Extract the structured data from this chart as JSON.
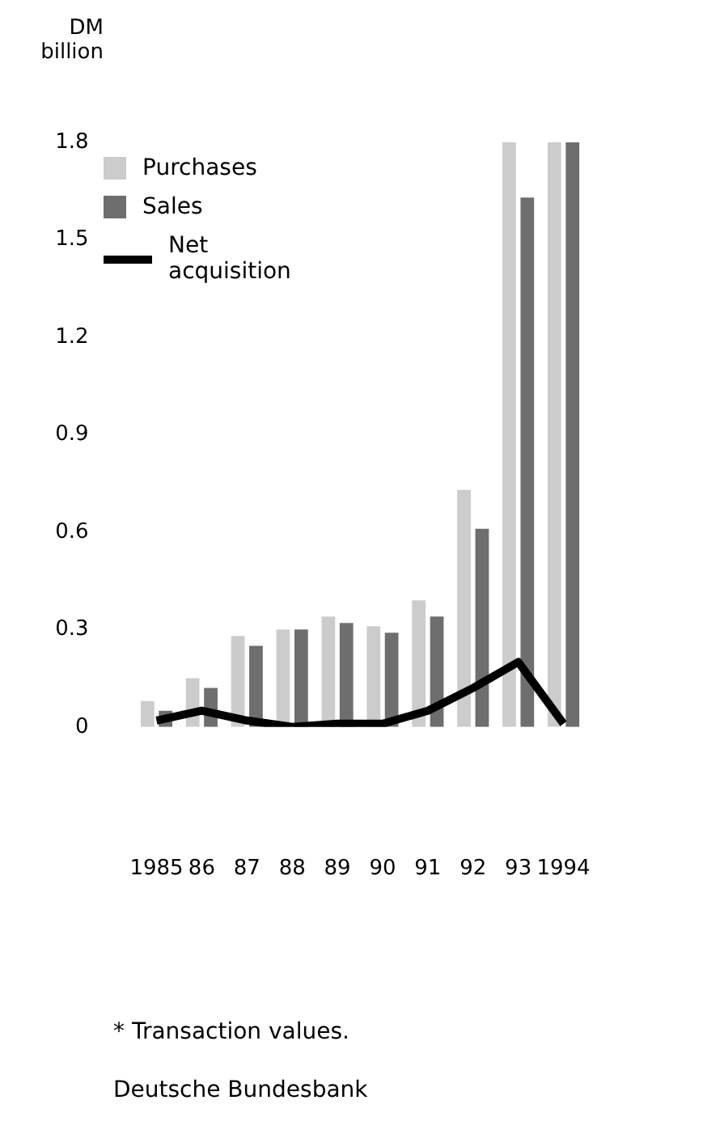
{
  "chart_data": {
    "type": "bar",
    "ylabel": "DM billion",
    "categories": [
      "1985",
      "86",
      "87",
      "88",
      "89",
      "90",
      "91",
      "92",
      "93",
      "1994"
    ],
    "series": [
      {
        "name": "Purchases",
        "color": "#cccccc",
        "values": [
          0.08,
          0.15,
          0.28,
          0.3,
          0.34,
          0.31,
          0.39,
          0.73,
          1.8,
          1.8
        ]
      },
      {
        "name": "Sales",
        "color": "#6e6e6e",
        "values": [
          0.05,
          0.12,
          0.25,
          0.3,
          0.32,
          0.29,
          0.34,
          0.61,
          1.63,
          1.8
        ]
      },
      {
        "name": "Net acquisition",
        "type": "line",
        "color": "#000000",
        "values": [
          0.02,
          0.05,
          0.02,
          0,
          0.01,
          0.01,
          0.05,
          0.12,
          0.2,
          0.01
        ]
      }
    ],
    "ylim": [
      0,
      1.8
    ],
    "yticks": [
      0,
      0.3,
      0.6,
      0.9,
      1.2,
      1.5,
      1.8
    ],
    "grid": false,
    "legend": "top left",
    "marker": "none",
    "annotations": [
      "* Transaction values.",
      "Deutsche Bundesbank"
    ]
  }
}
